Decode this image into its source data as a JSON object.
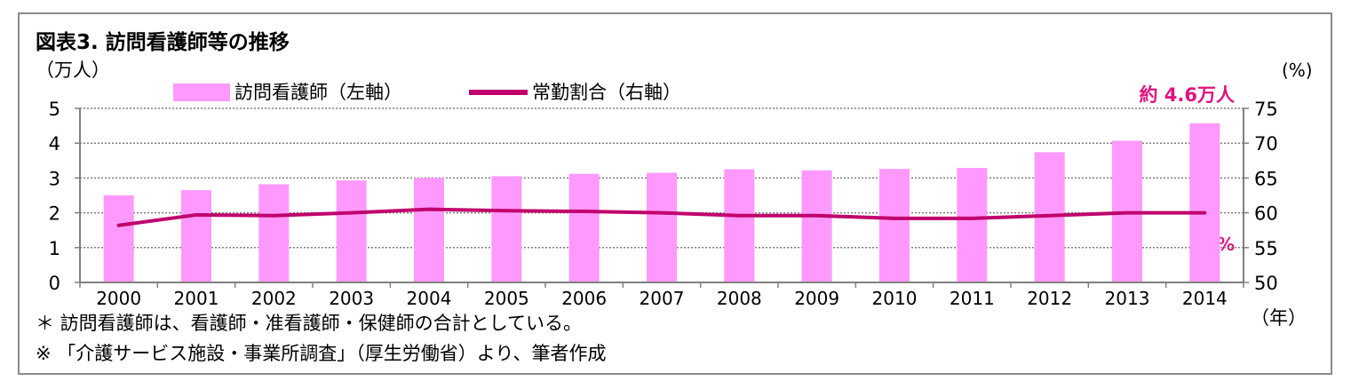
{
  "title": "図表3.  訪問看護師等の推移",
  "notes": [
    "＊  訪問看護師は、看護師・准看護師・保健師の合計としている。",
    "※ 「介護サービス施設・事業所調査」（厚生労働省）より、筆者作成"
  ],
  "colors": {
    "bar": "#ff99ff",
    "line": "#c0006c",
    "annotation": "#e0137f",
    "grid": "#7f7f7f",
    "frame": "#8c8c8c"
  },
  "chart_data": {
    "type": "bar",
    "categories": [
      "2000",
      "2001",
      "2002",
      "2003",
      "2004",
      "2005",
      "2006",
      "2007",
      "2008",
      "2009",
      "2010",
      "2011",
      "2012",
      "2013",
      "2014"
    ],
    "series": [
      {
        "name": "訪問看護師（左軸）",
        "type": "bar",
        "axis": "left",
        "values": [
          2.5,
          2.65,
          2.82,
          2.93,
          3.0,
          3.05,
          3.12,
          3.15,
          3.25,
          3.22,
          3.26,
          3.29,
          3.74,
          4.07,
          4.57
        ]
      },
      {
        "name": "常勤割合（右軸）",
        "type": "line",
        "axis": "right",
        "values": [
          58.2,
          59.7,
          59.6,
          60.0,
          60.5,
          60.3,
          60.2,
          60.0,
          59.6,
          59.6,
          59.2,
          59.2,
          59.6,
          60.0,
          60.0
        ]
      }
    ],
    "ylabel_left": "（万人）",
    "ylabel_right": "(%)",
    "xlabel": "（年）",
    "ylim_left": [
      0,
      5
    ],
    "yticks_left": [
      "0",
      "1",
      "2",
      "3",
      "4",
      "5"
    ],
    "ylim_right": [
      50,
      75
    ],
    "yticks_right": [
      "50",
      "55",
      "60",
      "65",
      "70",
      "75"
    ],
    "grid": true,
    "legend_position": "top",
    "annotations": {
      "bar_end": "約 4.6万人",
      "line_end": "60%"
    }
  }
}
